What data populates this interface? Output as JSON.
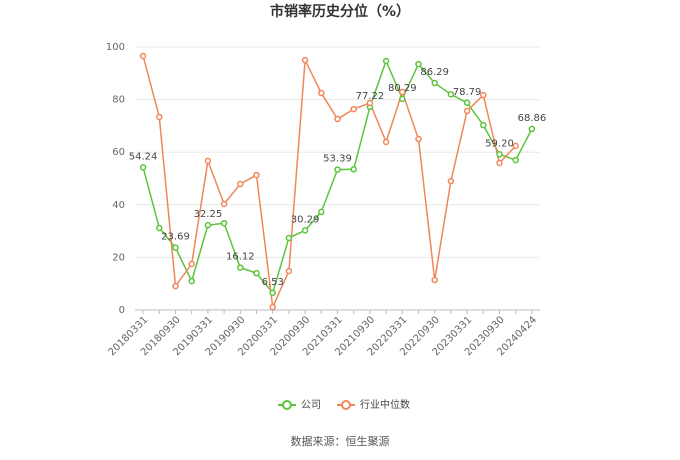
{
  "chart_data": {
    "type": "line",
    "title": "市销率历史分位（%）",
    "categories": [
      "20180331",
      null,
      "20180930",
      null,
      "20190331",
      null,
      "20190930",
      null,
      "20200331",
      null,
      "20200930",
      null,
      "20210331",
      null,
      "20210930",
      null,
      "20220331",
      null,
      "20220930",
      null,
      "20230331",
      null,
      "20230930",
      null,
      "20240424"
    ],
    "series": [
      {
        "name": "公司",
        "color": "#5cc43a",
        "values": [
          54.24,
          31.2,
          23.69,
          11,
          32.25,
          33,
          16.12,
          14,
          6.53,
          27.4,
          30.29,
          37.3,
          53.39,
          53.5,
          77.22,
          94.7,
          80.29,
          93.5,
          86.29,
          82,
          78.79,
          70.3,
          59.2,
          57,
          68.86
        ],
        "value_labels": [
          "54.24",
          null,
          "23.69",
          null,
          "32.25",
          null,
          "16.12",
          null,
          "6.53",
          null,
          "30.29",
          null,
          "53.39",
          null,
          "77.22",
          null,
          "80.29",
          null,
          "86.29",
          null,
          "78.79",
          null,
          "59.20",
          null,
          "68.86"
        ]
      },
      {
        "name": "行业中位数",
        "color": "#f0875a",
        "values": [
          96.6,
          73.4,
          9.1,
          17.5,
          56.7,
          40.3,
          47.9,
          51.3,
          1.1,
          14.8,
          95,
          82.5,
          72.6,
          76.4,
          78.7,
          63.9,
          82.9,
          65,
          11.4,
          49,
          75.7,
          81.7,
          55.9,
          62.4,
          null
        ]
      }
    ],
    "ylim": [
      0,
      100
    ],
    "yticks": [
      0,
      20,
      40,
      60,
      80,
      100
    ],
    "grid": true,
    "source": "数据来源：恒生聚源"
  }
}
